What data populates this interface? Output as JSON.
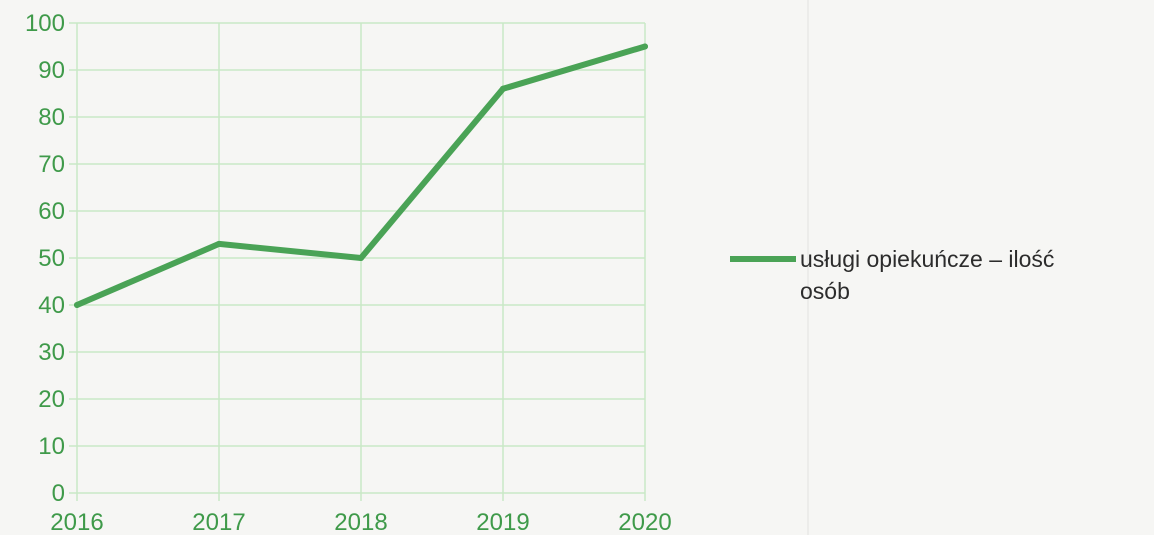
{
  "chart_data": {
    "type": "line",
    "x": [
      "2016",
      "2017",
      "2018",
      "2019",
      "2020"
    ],
    "ylim": [
      0,
      100
    ],
    "yticks": [
      "0",
      "10",
      "20",
      "30",
      "40",
      "50",
      "60",
      "70",
      "80",
      "90",
      "100"
    ],
    "series": [
      {
        "name": "usługi opiekuńcze – ilość osób",
        "values": [
          40,
          53,
          50,
          86,
          95
        ]
      }
    ],
    "legend": {
      "label_line1": "usługi opiekuńcze – ilość",
      "label_line2": "osób",
      "position": "right"
    },
    "grid": true,
    "colors": {
      "line": "#4aa356",
      "grid": "#c9e8c6",
      "axis_text": "#3f9a4a"
    }
  }
}
